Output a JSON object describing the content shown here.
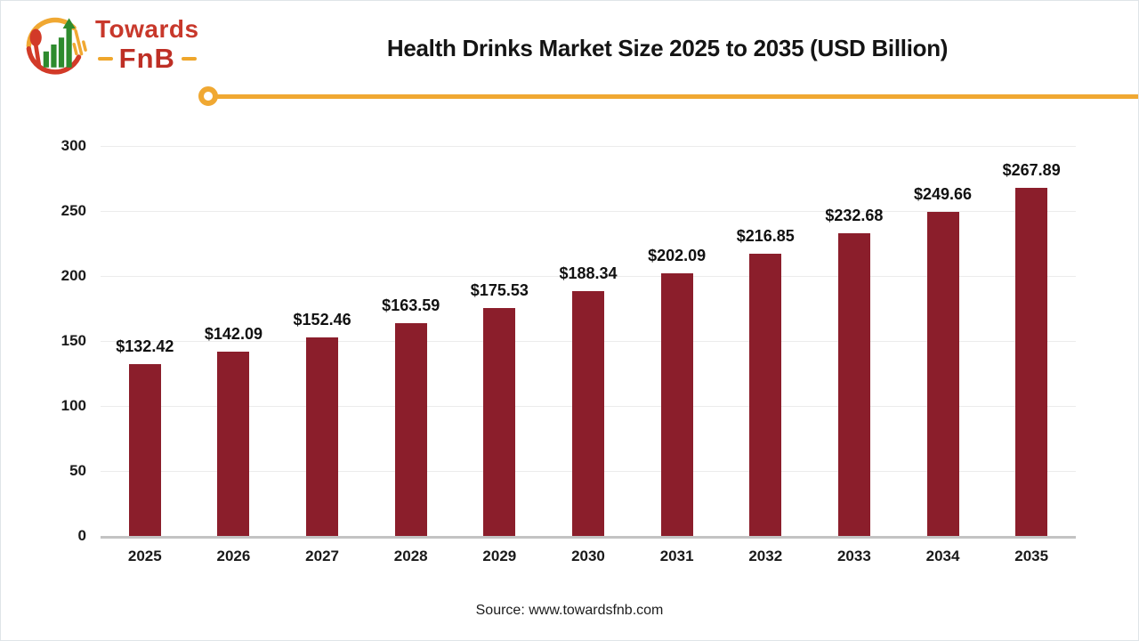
{
  "logo": {
    "brand_top": "Towards",
    "brand_bottom": "FnB",
    "colors": {
      "red": "#c8382b",
      "dark_red": "#be2f25",
      "yellow": "#f0a832",
      "green": "#2e8b2e"
    }
  },
  "header": {
    "title": "Health Drinks Market Size 2025 to 2035 (USD Billion)"
  },
  "chart_data": {
    "type": "bar",
    "title": "Health Drinks Market Size 2025 to 2035 (USD Billion)",
    "categories": [
      "2025",
      "2026",
      "2027",
      "2028",
      "2029",
      "2030",
      "2031",
      "2032",
      "2033",
      "2034",
      "2035"
    ],
    "values": [
      132.42,
      142.09,
      152.46,
      163.59,
      175.53,
      188.34,
      202.09,
      216.85,
      232.68,
      249.66,
      267.89
    ],
    "value_labels": [
      "$132.42",
      "$142.09",
      "$152.46",
      "$163.59",
      "$175.53",
      "$188.34",
      "$202.09",
      "$216.85",
      "$232.68",
      "$249.66",
      "$267.89"
    ],
    "xlabel": "",
    "ylabel": "",
    "unit": "USD Billion",
    "ylim": [
      0,
      300
    ],
    "yticks": [
      0,
      50,
      100,
      150,
      200,
      250,
      300
    ],
    "grid": true,
    "legend": "none",
    "bar_color": "#8b1e2b"
  },
  "footer": {
    "source": "Source: www.towardsfnb.com"
  }
}
